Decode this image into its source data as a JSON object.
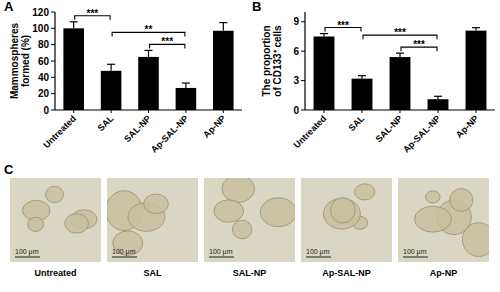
{
  "chart_data": [
    {
      "type": "bar",
      "title": "A",
      "ylabel": "Mammospheres formed (%)",
      "categories": [
        "Untreated",
        "SAL",
        "SAL-NP",
        "Ap-SAL-NP",
        "Ap-NP"
      ],
      "values": [
        100,
        48,
        65,
        27,
        97
      ],
      "errors": [
        8,
        8,
        8,
        6,
        10
      ],
      "color": "#000000",
      "ylim": [
        0,
        120
      ],
      "yticks": [
        0,
        20,
        40,
        60,
        80,
        100,
        120
      ],
      "grid": false,
      "annotations": [
        {
          "from": 0,
          "to": 1,
          "label": "***"
        },
        {
          "from": 1,
          "to": 3,
          "label": "**"
        },
        {
          "from": 2,
          "to": 3,
          "label": "***"
        }
      ]
    },
    {
      "type": "bar",
      "title": "B",
      "ylabel": "The proportion of CD133⁺ cells",
      "categories": [
        "Untreated",
        "SAL",
        "SAL-NP",
        "Ap-SAL-NP",
        "Ap-NP"
      ],
      "values": [
        7.5,
        3.2,
        5.4,
        1.1,
        8.1
      ],
      "errors": [
        0.3,
        0.3,
        0.4,
        0.3,
        0.3
      ],
      "color": "#000000",
      "ylim": [
        0,
        10
      ],
      "yticks": [
        0,
        3,
        6,
        9
      ],
      "grid": false,
      "annotations": [
        {
          "from": 0,
          "to": 1,
          "label": "***"
        },
        {
          "from": 1,
          "to": 3,
          "label": "***"
        },
        {
          "from": 2,
          "to": 3,
          "label": "***"
        }
      ]
    }
  ],
  "panel_c": {
    "label": "C",
    "images": [
      {
        "caption": "Untreated",
        "scale_bar": "100 μm"
      },
      {
        "caption": "SAL",
        "scale_bar": "100 μm"
      },
      {
        "caption": "SAL-NP",
        "scale_bar": "100 μm"
      },
      {
        "caption": "Ap-SAL-NP",
        "scale_bar": "100 μm"
      },
      {
        "caption": "Ap-NP",
        "scale_bar": "100 μm"
      }
    ]
  }
}
